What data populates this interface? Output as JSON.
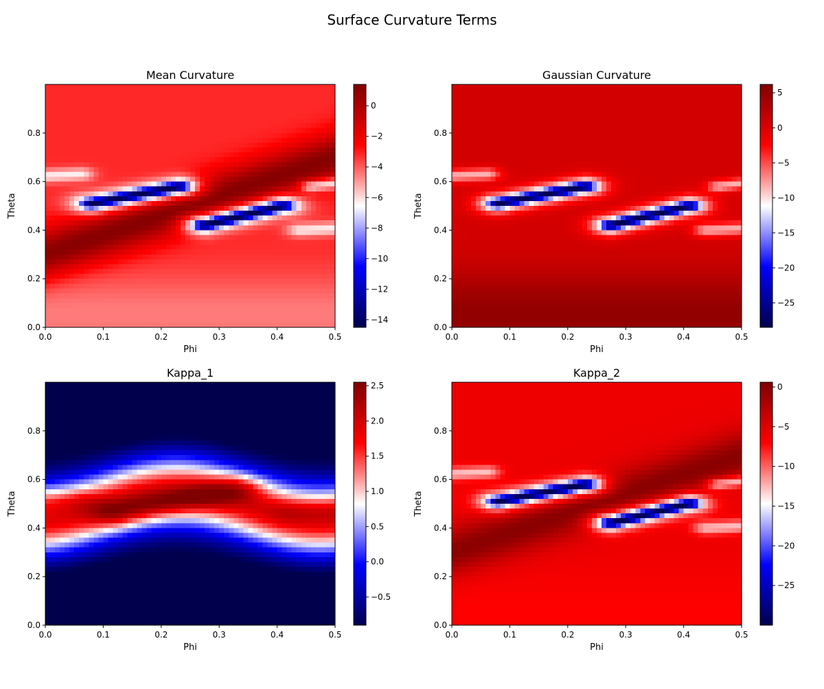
{
  "suptitle": "Surface Curvature Terms",
  "colors": {
    "cmap_low": "#00004d",
    "cmap_blue": "#0000ff",
    "cmap_mid": "#ffffff",
    "cmap_red": "#ff0000",
    "cmap_high": "#800000"
  },
  "chart_data": [
    {
      "type": "heatmap",
      "title": "Mean Curvature",
      "xlabel": "Phi",
      "ylabel": "Theta",
      "xlim": [
        0.0,
        0.5
      ],
      "ylim": [
        0.0,
        1.0
      ],
      "xticks": [
        0.0,
        0.1,
        0.2,
        0.3,
        0.4,
        0.5
      ],
      "xticklabels": [
        "0.0",
        "0.1",
        "0.2",
        "0.3",
        "0.4",
        "0.5"
      ],
      "yticks": [
        0.0,
        0.2,
        0.4,
        0.6,
        0.8
      ],
      "yticklabels": [
        "0.0",
        "0.2",
        "0.4",
        "0.6",
        "0.8"
      ],
      "colormap": "seismic",
      "vmin": -14.5,
      "vmax": 1.4,
      "cbar_ticks": [
        0,
        -2,
        -4,
        -6,
        -8,
        -10,
        -12,
        -14
      ],
      "cbar_ticklabels": [
        "0",
        "−2",
        "−4",
        "−6",
        "−8",
        "−10",
        "−12",
        "−14"
      ],
      "features": {
        "base": -3.2,
        "band_low": 1.2,
        "band_high": 0.4,
        "tube_low": -14.5,
        "tube_high": -13.5,
        "halo": -7.5,
        "bottom": -4.5
      }
    },
    {
      "type": "heatmap",
      "title": "Gaussian Curvature",
      "xlabel": "Phi",
      "ylabel": "Theta",
      "xlim": [
        0.0,
        0.5
      ],
      "ylim": [
        0.0,
        1.0
      ],
      "xticks": [
        0.0,
        0.1,
        0.2,
        0.3,
        0.4,
        0.5
      ],
      "xticklabels": [
        "0.0",
        "0.1",
        "0.2",
        "0.3",
        "0.4",
        "0.5"
      ],
      "yticks": [
        0.0,
        0.2,
        0.4,
        0.6,
        0.8
      ],
      "yticklabels": [
        "0.0",
        "0.2",
        "0.4",
        "0.6",
        "0.8"
      ],
      "colormap": "seismic",
      "vmin": -28.5,
      "vmax": 6.2,
      "cbar_ticks": [
        5,
        0,
        -5,
        -10,
        -15,
        -20,
        -25
      ],
      "cbar_ticklabels": [
        "5",
        "0",
        "−5",
        "−10",
        "−15",
        "−20",
        "−25"
      ],
      "features": {
        "base": 0.5,
        "band_low": 0.5,
        "band_high": 0.5,
        "tube_low": -28.5,
        "tube_high": -27.0,
        "halo": -12.0,
        "bottom": 5.0
      }
    },
    {
      "type": "heatmap",
      "title": "Kappa_1",
      "xlabel": "Phi",
      "ylabel": "Theta",
      "xlim": [
        0.0,
        0.5
      ],
      "ylim": [
        0.0,
        1.0
      ],
      "xticks": [
        0.0,
        0.1,
        0.2,
        0.3,
        0.4,
        0.5
      ],
      "xticklabels": [
        "0.0",
        "0.1",
        "0.2",
        "0.3",
        "0.4",
        "0.5"
      ],
      "yticks": [
        0.0,
        0.2,
        0.4,
        0.6,
        0.8
      ],
      "yticklabels": [
        "0.0",
        "0.2",
        "0.4",
        "0.6",
        "0.8"
      ],
      "colormap": "seismic",
      "vmin": -0.9,
      "vmax": 2.55,
      "cbar_ticks": [
        2.5,
        2.0,
        1.5,
        1.0,
        0.5,
        0.0,
        -0.5
      ],
      "cbar_ticklabels": [
        "2.5",
        "2.0",
        "1.5",
        "1.0",
        "0.5",
        "0.0",
        "−0.5"
      ],
      "features": {
        "edge": -0.9,
        "peak": 2.5,
        "side": 1.6
      }
    },
    {
      "type": "heatmap",
      "title": "Kappa_2",
      "xlabel": "Phi",
      "ylabel": "Theta",
      "xlim": [
        0.0,
        0.5
      ],
      "ylim": [
        0.0,
        1.0
      ],
      "xticks": [
        0.0,
        0.1,
        0.2,
        0.3,
        0.4,
        0.5
      ],
      "xticklabels": [
        "0.0",
        "0.1",
        "0.2",
        "0.3",
        "0.4",
        "0.5"
      ],
      "yticks": [
        0.0,
        0.2,
        0.4,
        0.6,
        0.8
      ],
      "yticklabels": [
        "0.0",
        "0.2",
        "0.4",
        "0.6",
        "0.8"
      ],
      "colormap": "seismic",
      "vmin": -30.0,
      "vmax": 0.6,
      "cbar_ticks": [
        0,
        -5,
        -10,
        -15,
        -20,
        -25
      ],
      "cbar_ticklabels": [
        "0",
        "−5",
        "−10",
        "−15",
        "−20",
        "−25"
      ],
      "features": {
        "base": -6.0,
        "band_low": 0.0,
        "band_high": -1.5,
        "tube_low": -30.0,
        "tube_high": -29.0,
        "halo": -15.5,
        "bottom": -7.0
      }
    }
  ]
}
